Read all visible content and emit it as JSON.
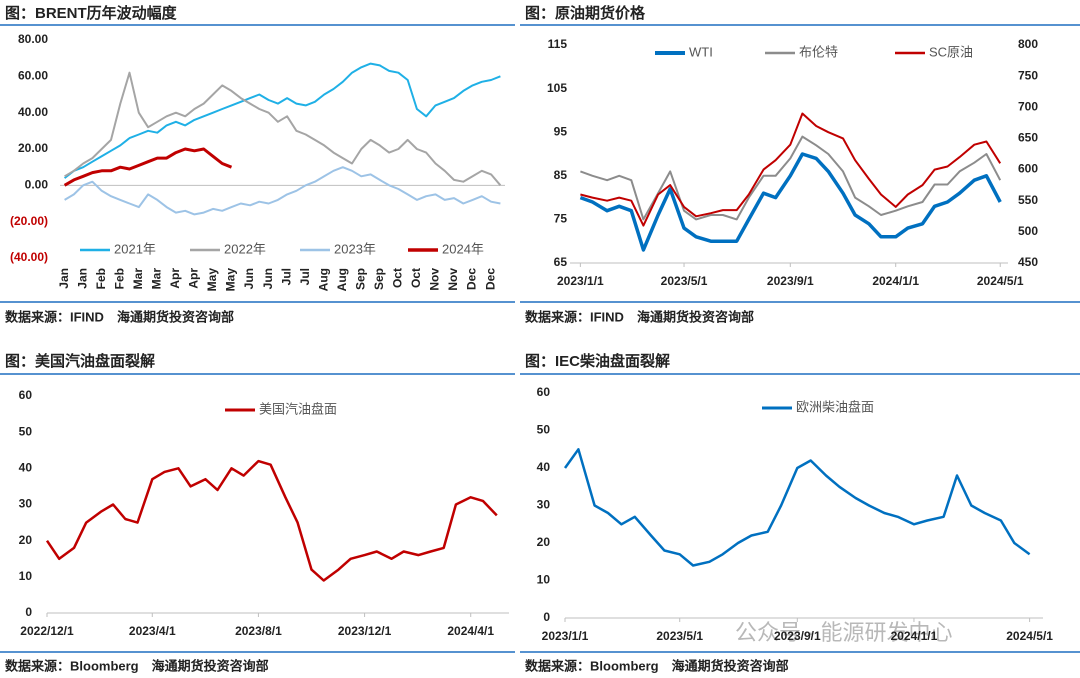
{
  "watermark": "公众号 · 能源研发中心",
  "chart_data": [
    {
      "type": "line",
      "title": "图：BRENT历年波动幅度",
      "source": "数据来源：IFIND　海通期货投资咨询部",
      "categories": [
        "Jan",
        null,
        "Jan",
        null,
        "Feb",
        null,
        "Feb",
        null,
        "Mar",
        null,
        "Mar",
        null,
        "Apr",
        null,
        "Apr",
        null,
        "May",
        null,
        "May",
        null,
        "Jun",
        null,
        "Jun",
        null,
        "Jul",
        null,
        "Jul",
        null,
        "Aug",
        null,
        "Aug",
        null,
        "Sep",
        null,
        "Sep",
        null,
        "Oct",
        null,
        "Oct",
        null,
        "Nov",
        null,
        "Nov",
        null,
        "Dec",
        null,
        "Dec",
        null
      ],
      "ylim": [
        -40,
        80
      ],
      "yticks": [
        {
          "value": -40,
          "label": "(40.00)"
        },
        {
          "value": -20,
          "label": "(20.00)"
        },
        {
          "value": 0,
          "label": "0.00"
        },
        {
          "value": 20,
          "label": "20.00"
        },
        {
          "value": 40,
          "label": "40.00"
        },
        {
          "value": 60,
          "label": "60.00"
        },
        {
          "value": 80,
          "label": "80.00"
        }
      ],
      "series": [
        {
          "name": "2021年",
          "color": "#1fb0e6",
          "values": [
            4,
            8,
            10,
            13,
            16,
            19,
            22,
            26,
            28,
            30,
            29,
            33,
            35,
            33,
            36,
            38,
            40,
            42,
            44,
            46,
            48,
            50,
            47,
            45,
            48,
            45,
            44,
            46,
            50,
            53,
            57,
            62,
            65,
            67,
            66,
            63,
            62,
            58,
            42,
            38,
            44,
            46,
            48,
            52,
            55,
            57,
            58,
            60
          ]
        },
        {
          "name": "2022年",
          "color": "#a5a5a5",
          "values": [
            5,
            8,
            12,
            15,
            20,
            25,
            45,
            62,
            40,
            32,
            35,
            38,
            40,
            38,
            42,
            45,
            50,
            55,
            52,
            48,
            45,
            42,
            40,
            35,
            38,
            30,
            28,
            25,
            22,
            18,
            15,
            12,
            20,
            25,
            22,
            18,
            20,
            25,
            20,
            18,
            12,
            8,
            3,
            2,
            5,
            8,
            6,
            0
          ]
        },
        {
          "name": "2023年",
          "color": "#9dc3e6",
          "values": [
            -8,
            -5,
            0,
            2,
            -3,
            -6,
            -8,
            -10,
            -12,
            -5,
            -8,
            -12,
            -15,
            -14,
            -16,
            -15,
            -13,
            -14,
            -12,
            -10,
            -11,
            -9,
            -10,
            -8,
            -5,
            -3,
            0,
            2,
            5,
            8,
            10,
            8,
            5,
            6,
            3,
            0,
            -2,
            -5,
            -8,
            -6,
            -5,
            -8,
            -7,
            -10,
            -8,
            -6,
            -9,
            -10
          ]
        },
        {
          "name": "2024年",
          "color": "#c00000",
          "values": [
            0,
            3,
            5,
            7,
            8,
            8,
            10,
            9,
            11,
            13,
            15,
            15,
            18,
            20,
            19,
            20,
            16,
            12,
            10,
            null,
            null,
            null,
            null,
            null,
            null,
            null,
            null,
            null,
            null,
            null,
            null,
            null,
            null,
            null,
            null,
            null,
            null,
            null,
            null,
            null,
            null,
            null,
            null,
            null,
            null,
            null,
            null,
            null
          ]
        }
      ]
    },
    {
      "type": "line",
      "title": "图：原油期货价格",
      "source": "数据来源：IFIND　海通期货投资咨询部",
      "x": [
        "2023/1/1",
        "2023/1/15",
        "2023/2/1",
        "2023/2/15",
        "2023/3/1",
        "2023/3/15",
        "2023/4/1",
        "2023/4/15",
        "2023/5/1",
        "2023/5/15",
        "2023/6/1",
        "2023/6/15",
        "2023/7/1",
        "2023/7/15",
        "2023/8/1",
        "2023/8/15",
        "2023/9/1",
        "2023/9/15",
        "2023/10/1",
        "2023/10/15",
        "2023/11/1",
        "2023/11/15",
        "2023/12/1",
        "2023/12/15",
        "2024/1/1",
        "2024/1/15",
        "2024/2/1",
        "2024/2/15",
        "2024/3/1",
        "2024/3/15",
        "2024/4/1",
        "2024/4/15",
        "2024/5/1"
      ],
      "xlim": [
        "2022/12/20",
        "2024/5/10"
      ],
      "xticks": [
        "2023/1/1",
        "2023/5/1",
        "2023/9/1",
        "2024/1/1",
        "2024/5/1"
      ],
      "ylim": [
        65,
        115
      ],
      "yticks": [
        65,
        75,
        85,
        95,
        105,
        115
      ],
      "y2lim": [
        450,
        800
      ],
      "y2ticks": [
        450,
        500,
        550,
        600,
        650,
        700,
        750,
        800
      ],
      "series": [
        {
          "name": "WTI",
          "color": "#0070c0",
          "values": [
            80,
            79,
            77,
            78,
            77,
            68,
            76,
            82,
            73,
            71,
            70,
            70,
            70,
            75,
            81,
            80,
            85,
            90,
            89,
            86,
            81,
            76,
            74,
            71,
            71,
            73,
            74,
            78,
            79,
            81,
            84,
            85,
            79
          ]
        },
        {
          "name": "布伦特",
          "color": "#8c8c8c",
          "values": [
            86,
            85,
            84,
            85,
            84,
            75,
            81,
            86,
            77,
            75,
            76,
            76,
            75,
            80,
            85,
            85,
            89,
            94,
            92,
            90,
            86,
            80,
            78,
            76,
            77,
            78,
            79,
            83,
            83,
            86,
            88,
            90,
            84
          ]
        },
        {
          "name": "SC原油",
          "color": "#c00000",
          "axis": "y2",
          "values": [
            560,
            555,
            550,
            555,
            550,
            510,
            560,
            575,
            540,
            525,
            530,
            535,
            535,
            560,
            600,
            615,
            640,
            690,
            670,
            660,
            650,
            615,
            585,
            560,
            540,
            560,
            575,
            600,
            605,
            620,
            640,
            645,
            610
          ]
        }
      ]
    },
    {
      "type": "line",
      "title": "图：美国汽油盘面裂解",
      "source": "数据来源：Bloomberg　海通期货投资咨询部",
      "x": [
        "2022/12/1",
        "2022/12/15",
        "2023/1/1",
        "2023/1/15",
        "2023/2/1",
        "2023/2/15",
        "2023/3/1",
        "2023/3/15",
        "2023/4/1",
        "2023/4/15",
        "2023/5/1",
        "2023/5/15",
        "2023/6/1",
        "2023/6/15",
        "2023/7/1",
        "2023/7/15",
        "2023/8/1",
        "2023/8/15",
        "2023/9/1",
        "2023/9/15",
        "2023/10/1",
        "2023/10/15",
        "2023/11/1",
        "2023/11/15",
        "2023/12/1",
        "2023/12/15",
        "2024/1/1",
        "2024/1/15",
        "2024/2/1",
        "2024/2/15",
        "2024/3/1",
        "2024/3/15",
        "2024/4/1",
        "2024/4/15",
        "2024/5/1"
      ],
      "xlim": [
        "2022/12/1",
        "2024/5/15"
      ],
      "xticks": [
        "2022/12/1",
        "2023/4/1",
        "2023/8/1",
        "2023/12/1",
        "2024/4/1"
      ],
      "ylim": [
        0,
        60
      ],
      "yticks": [
        0,
        10,
        20,
        30,
        40,
        50,
        60
      ],
      "series": [
        {
          "name": "美国汽油盘面",
          "color": "#c00000",
          "values": [
            20,
            15,
            18,
            25,
            28,
            30,
            26,
            25,
            37,
            39,
            40,
            35,
            37,
            34,
            40,
            38,
            42,
            41,
            32,
            25,
            12,
            9,
            12,
            15,
            16,
            17,
            15,
            17,
            16,
            17,
            18,
            30,
            32,
            31,
            27
          ]
        }
      ]
    },
    {
      "type": "line",
      "title": "图：IEC柴油盘面裂解",
      "source": "数据来源：Bloomberg　海通期货投资咨询部",
      "x": [
        "2023/1/1",
        "2023/1/15",
        "2023/2/1",
        "2023/2/15",
        "2023/3/1",
        "2023/3/15",
        "2023/4/1",
        "2023/4/15",
        "2023/5/1",
        "2023/5/15",
        "2023/6/1",
        "2023/6/15",
        "2023/7/1",
        "2023/7/15",
        "2023/8/1",
        "2023/8/15",
        "2023/9/1",
        "2023/9/15",
        "2023/10/1",
        "2023/10/15",
        "2023/11/1",
        "2023/11/15",
        "2023/12/1",
        "2023/12/15",
        "2024/1/1",
        "2024/1/15",
        "2024/2/1",
        "2024/2/15",
        "2024/3/1",
        "2024/3/15",
        "2024/4/1",
        "2024/4/15",
        "2024/5/1"
      ],
      "xlim": [
        "2023/1/1",
        "2024/5/15"
      ],
      "xticks": [
        "2023/1/1",
        "2023/5/1",
        "2023/9/1",
        "2024/1/1",
        "2024/5/1"
      ],
      "ylim": [
        0,
        60
      ],
      "yticks": [
        0,
        10,
        20,
        30,
        40,
        50,
        60
      ],
      "series": [
        {
          "name": "欧洲柴油盘面",
          "color": "#0070c0",
          "values": [
            40,
            45,
            30,
            28,
            25,
            27,
            22,
            18,
            17,
            14,
            15,
            17,
            20,
            22,
            23,
            30,
            40,
            42,
            38,
            35,
            32,
            30,
            28,
            27,
            25,
            26,
            27,
            38,
            30,
            28,
            26,
            20,
            17
          ]
        }
      ]
    }
  ]
}
